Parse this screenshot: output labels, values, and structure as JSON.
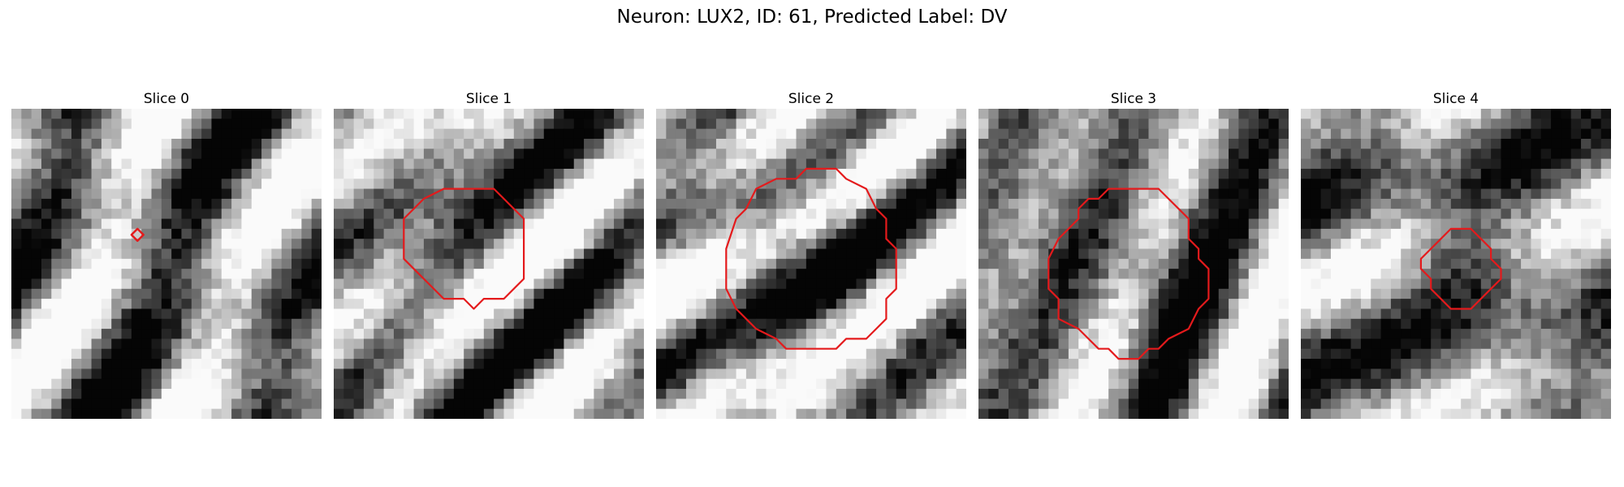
{
  "title": "Neuron: LUX2, ID: 61, Predicted Label: DV",
  "slices": [
    {
      "label": "Slice 0",
      "seed": 11,
      "bright": 0.55,
      "blob": -0.05,
      "blobR": 0.15,
      "roi": "point"
    },
    {
      "label": "Slice 1",
      "seed": 23,
      "bright": 0.6,
      "blob": -0.15,
      "blobR": 0.28,
      "roi": "small"
    },
    {
      "label": "Slice 2",
      "seed": 37,
      "bright": 0.7,
      "blob": -0.45,
      "blobR": 0.4,
      "roi": "large"
    },
    {
      "label": "Slice 3",
      "seed": 41,
      "bright": 0.55,
      "blob": -0.35,
      "blobR": 0.36,
      "roi": "mid"
    },
    {
      "label": "Slice 4",
      "seed": 53,
      "bright": 0.5,
      "blob": -0.25,
      "blobR": 0.18,
      "roi": "tiny"
    }
  ],
  "colors": {
    "contour": "#e41a1c"
  }
}
